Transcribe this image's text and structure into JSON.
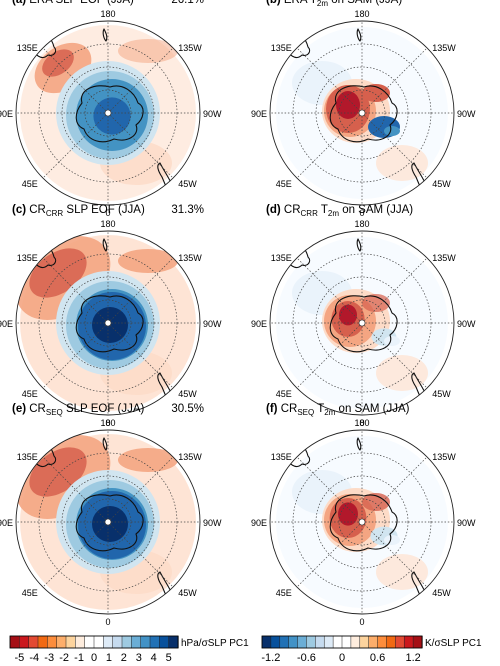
{
  "panels": [
    {
      "letter": "(a)",
      "title_main": "ERA SLP EOF (JJA)",
      "title_pre": "",
      "title_sub": "",
      "title_post": "",
      "variance": "26.1%",
      "field": "slp",
      "amp": 0.45
    },
    {
      "letter": "(b)",
      "title_main": "",
      "title_pre": "ERA T",
      "title_sub": "2m",
      "title_post": " on SAM (JJA)",
      "variance": "",
      "field": "t2m",
      "amp": 1.0
    },
    {
      "letter": "(c)",
      "title_main": "",
      "title_pre": "CR",
      "title_sub": "CRR",
      "title_post": " SLP EOF (JJA)",
      "variance": "31.3%",
      "field": "slp",
      "amp": 1.0
    },
    {
      "letter": "(d)",
      "title_main": "",
      "title_pre": "CR",
      "title_sub": "CRR",
      "title_post": " T",
      "title_sub2": "2m",
      "title_post2": " on SAM (JJA)",
      "variance": "",
      "field": "t2m",
      "amp": 0.7
    },
    {
      "letter": "(e)",
      "title_main": "",
      "title_pre": "CR",
      "title_sub": "SEQ",
      "title_post": " SLP EOF (JJA)",
      "variance": "30.5%",
      "field": "slp",
      "amp": 1.0
    },
    {
      "letter": "(f)",
      "title_main": "",
      "title_pre": "CR",
      "title_sub": "SEQ",
      "title_post": " T",
      "title_sub2": "2m",
      "title_post2": " on SAM (JJA)",
      "variance": "",
      "field": "t2m",
      "amp": 0.8
    }
  ],
  "map_labels": {
    "top": "180",
    "bottom": "0",
    "left": "90E",
    "right": "90W",
    "upper_left": "135E",
    "upper_right": "135W",
    "lower_left": "45E",
    "lower_right": "45W"
  },
  "colorbars": [
    {
      "units": "hPa/σSLP PC1",
      "tick_labels": [
        "-5",
        "-4",
        "-3",
        "-2",
        "-1",
        "0",
        "1",
        "2",
        "3",
        "4",
        "5"
      ],
      "colors": [
        "#a50f15",
        "#cb181d",
        "#e34a33",
        "#f16913",
        "#fd8d3c",
        "#fdae6b",
        "#fdd49e",
        "#feedde",
        "#ffffff",
        "#ffffff",
        "#deebf7",
        "#c6dbef",
        "#9ecae1",
        "#6baed6",
        "#4292c6",
        "#2171b5",
        "#08519c",
        "#08306b"
      ]
    },
    {
      "units": "K/σSLP PC1",
      "tick_labels": [
        "-1.2",
        "-0.6",
        "0",
        "0.6",
        "1.2"
      ],
      "colors": [
        "#08306b",
        "#08519c",
        "#2171b5",
        "#4292c6",
        "#6baed6",
        "#9ecae1",
        "#c6dbef",
        "#deebf7",
        "#ffffff",
        "#ffffff",
        "#feedde",
        "#fdd49e",
        "#fdae6b",
        "#fd8d3c",
        "#f16913",
        "#e34a33",
        "#cb181d",
        "#a50f15"
      ]
    }
  ],
  "palette": {
    "dark_red": "#b2182b",
    "red": "#d6604d",
    "orange": "#f4a582",
    "light_orange": "#fddbc7",
    "light_blue": "#d1e5f0",
    "blue": "#4393c3",
    "dark_blue": "#2166ac",
    "navy": "#08306b"
  }
}
